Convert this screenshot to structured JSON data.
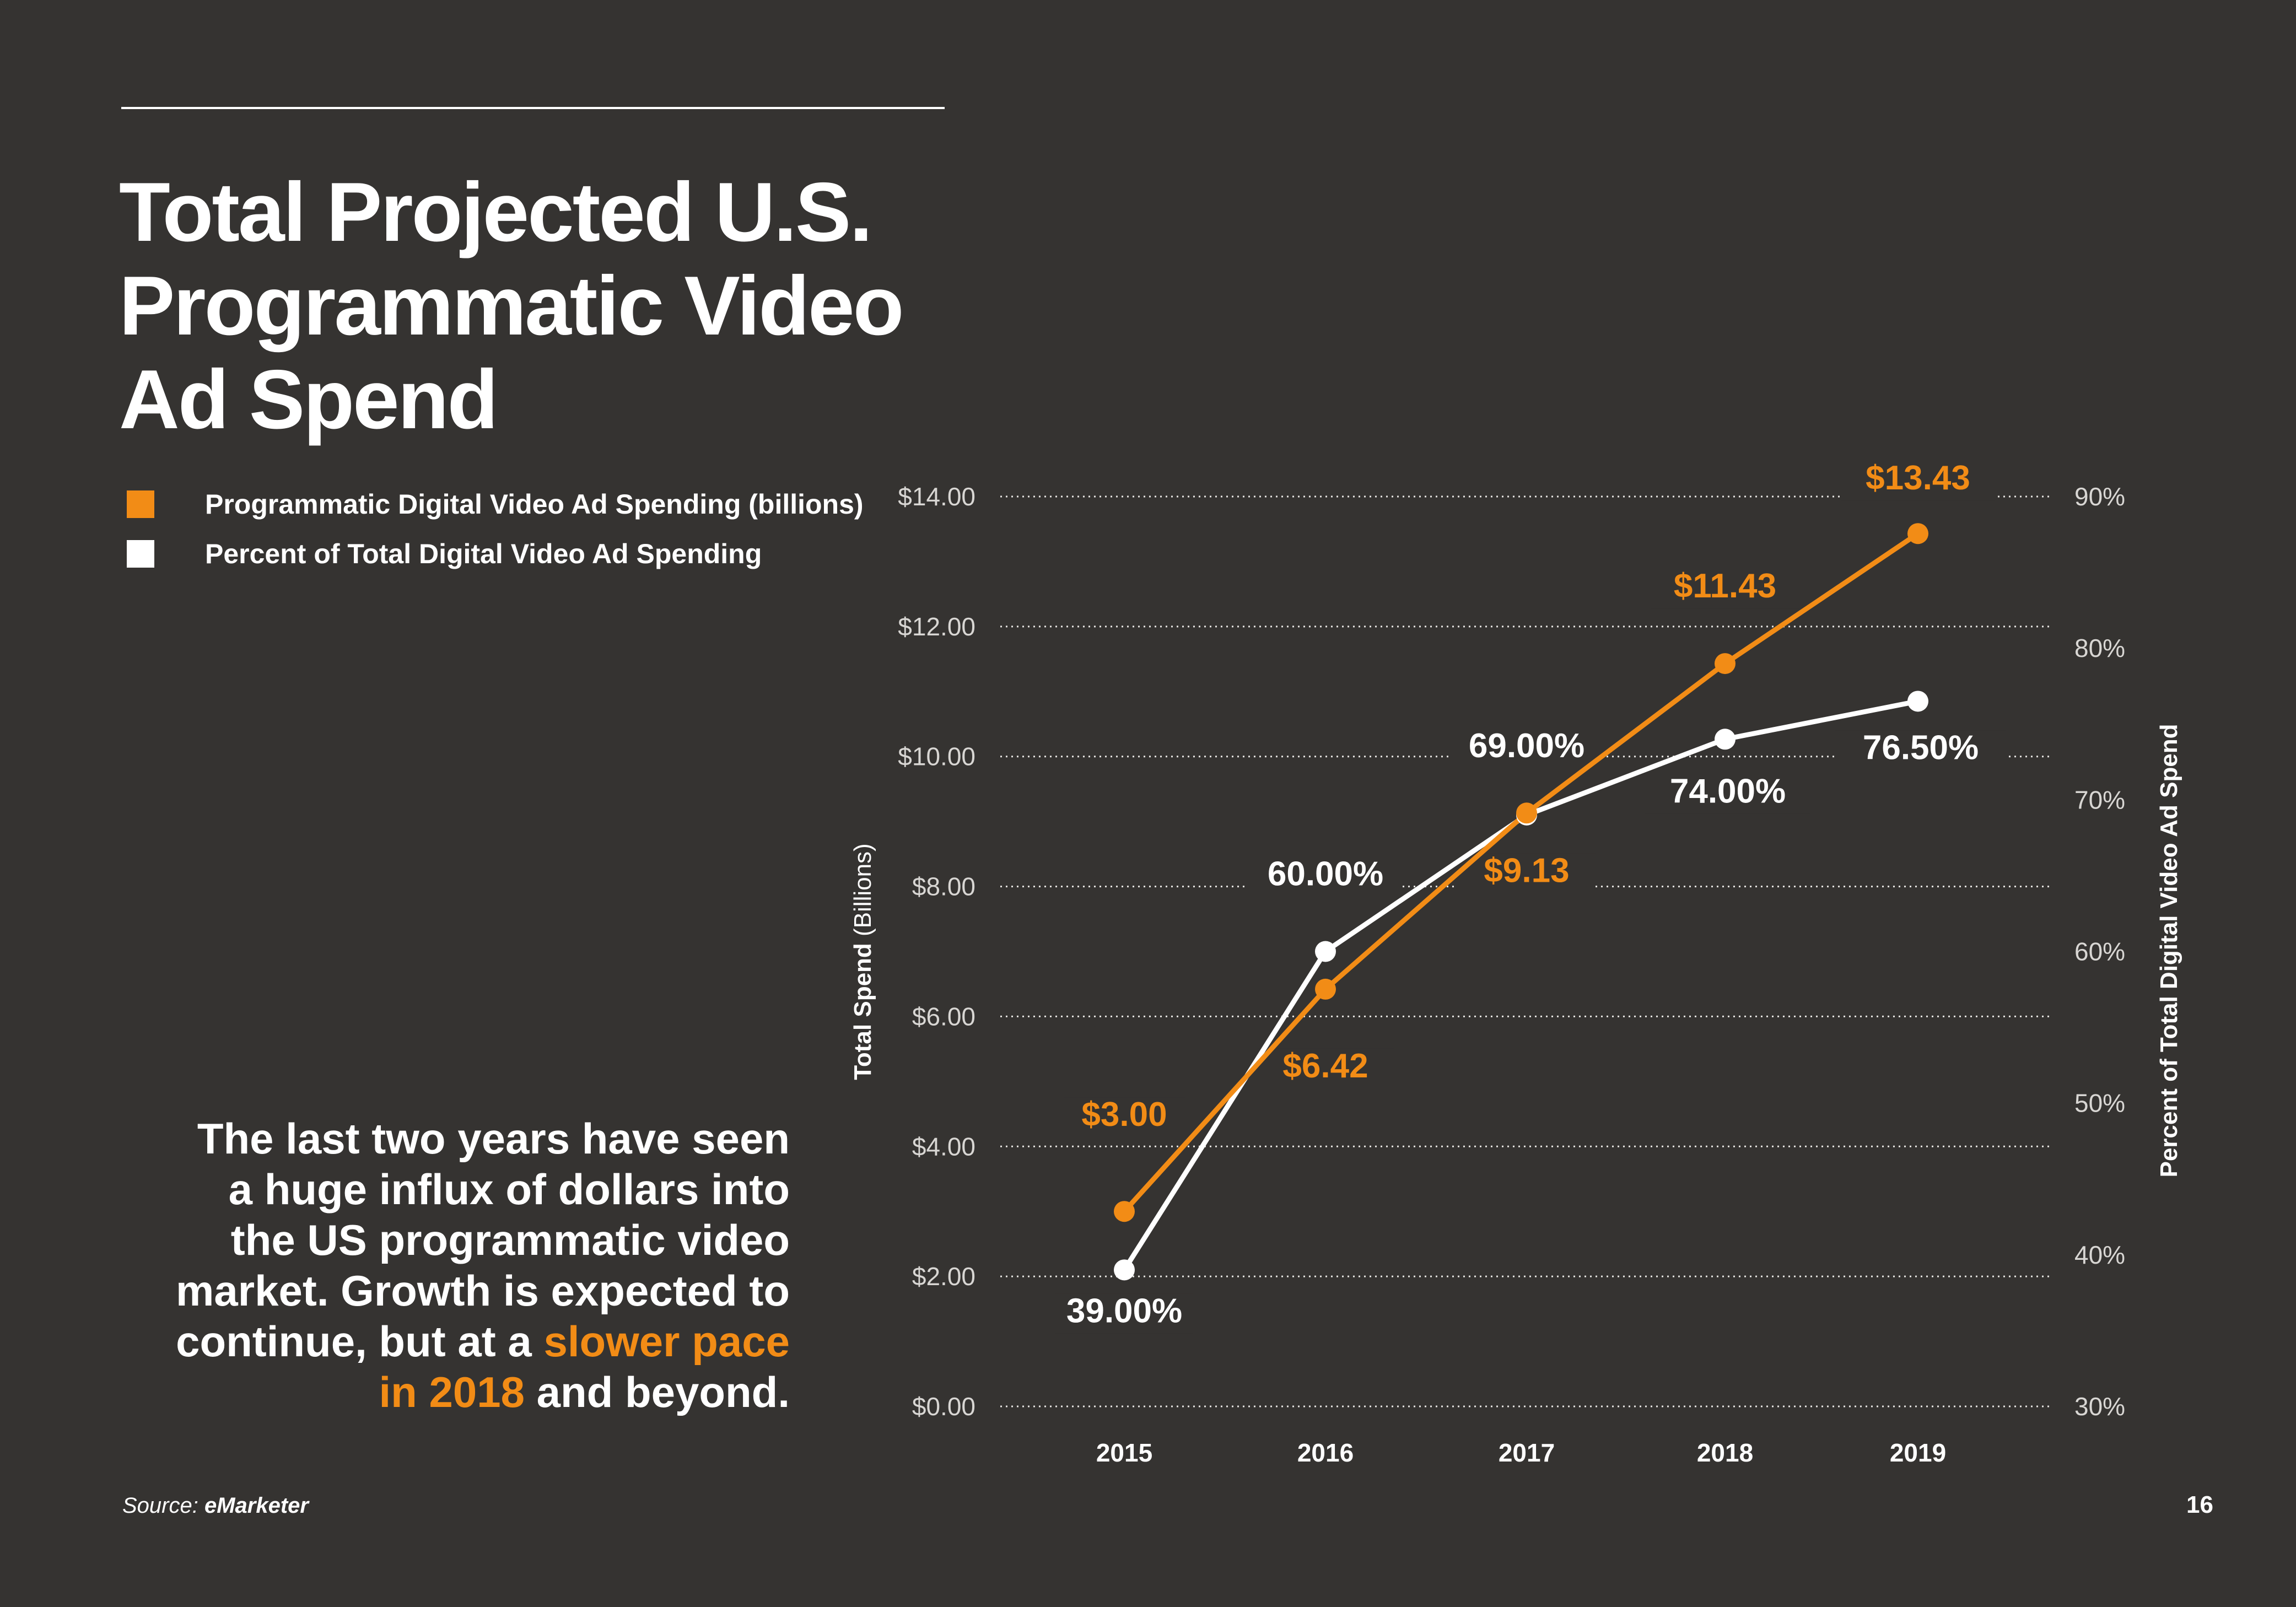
{
  "title_lines": [
    "Total Projected U.S.",
    "Programmatic Video",
    "Ad Spend"
  ],
  "legend": [
    {
      "label": "Programmatic Digital Video Ad Spending (billions)",
      "color": "#f28c16"
    },
    {
      "label": "Percent of Total Digital Video Ad Spending",
      "color": "#ffffff"
    }
  ],
  "callout": {
    "before": "The last two years have seen a huge influx of dollars into the US programmatic video market. Growth is expected to continue, but at a ",
    "highlight": "slower pace in 2018",
    "after": " and beyond."
  },
  "source": {
    "prefix": "Source:",
    "name": "eMarketer"
  },
  "page_number": "16",
  "colors": {
    "background": "#353331",
    "accent": "#f28c16",
    "text": "#ffffff"
  },
  "chart_data": {
    "type": "line",
    "categories": [
      "2015",
      "2016",
      "2017",
      "2018",
      "2019"
    ],
    "series": [
      {
        "name": "Programmatic Digital Video Ad Spending (billions)",
        "axis": "left",
        "values": [
          3.0,
          6.42,
          9.13,
          11.43,
          13.43
        ],
        "labels": [
          "$3.00",
          "$6.42",
          "$9.13",
          "$11.43",
          "$13.43"
        ],
        "color": "#f28c16"
      },
      {
        "name": "Percent of Total Digital Video Ad Spending",
        "axis": "right",
        "values": [
          39.0,
          60.0,
          69.0,
          74.0,
          76.5
        ],
        "labels": [
          "39.00%",
          "60.00%",
          "69.00%",
          "74.00%",
          "76.50%"
        ],
        "color": "#ffffff"
      }
    ],
    "y_left": {
      "label": "Total Spend",
      "label_suffix": "(Billions)",
      "range": [
        0,
        14
      ],
      "ticks": [
        0,
        2,
        4,
        6,
        8,
        10,
        12,
        14
      ],
      "tick_labels": [
        "$0.00",
        "$2.00",
        "$4.00",
        "$6.00",
        "$8.00",
        "$10.00",
        "$12.00",
        "$14.00"
      ]
    },
    "y_right": {
      "label": "Percent of Total Digital Video Ad Spend",
      "range": [
        30,
        90
      ],
      "ticks": [
        30,
        40,
        50,
        60,
        70,
        80,
        90
      ],
      "tick_labels": [
        "30%",
        "40%",
        "50%",
        "60%",
        "70%",
        "80%",
        "90%"
      ]
    },
    "grid": true
  }
}
